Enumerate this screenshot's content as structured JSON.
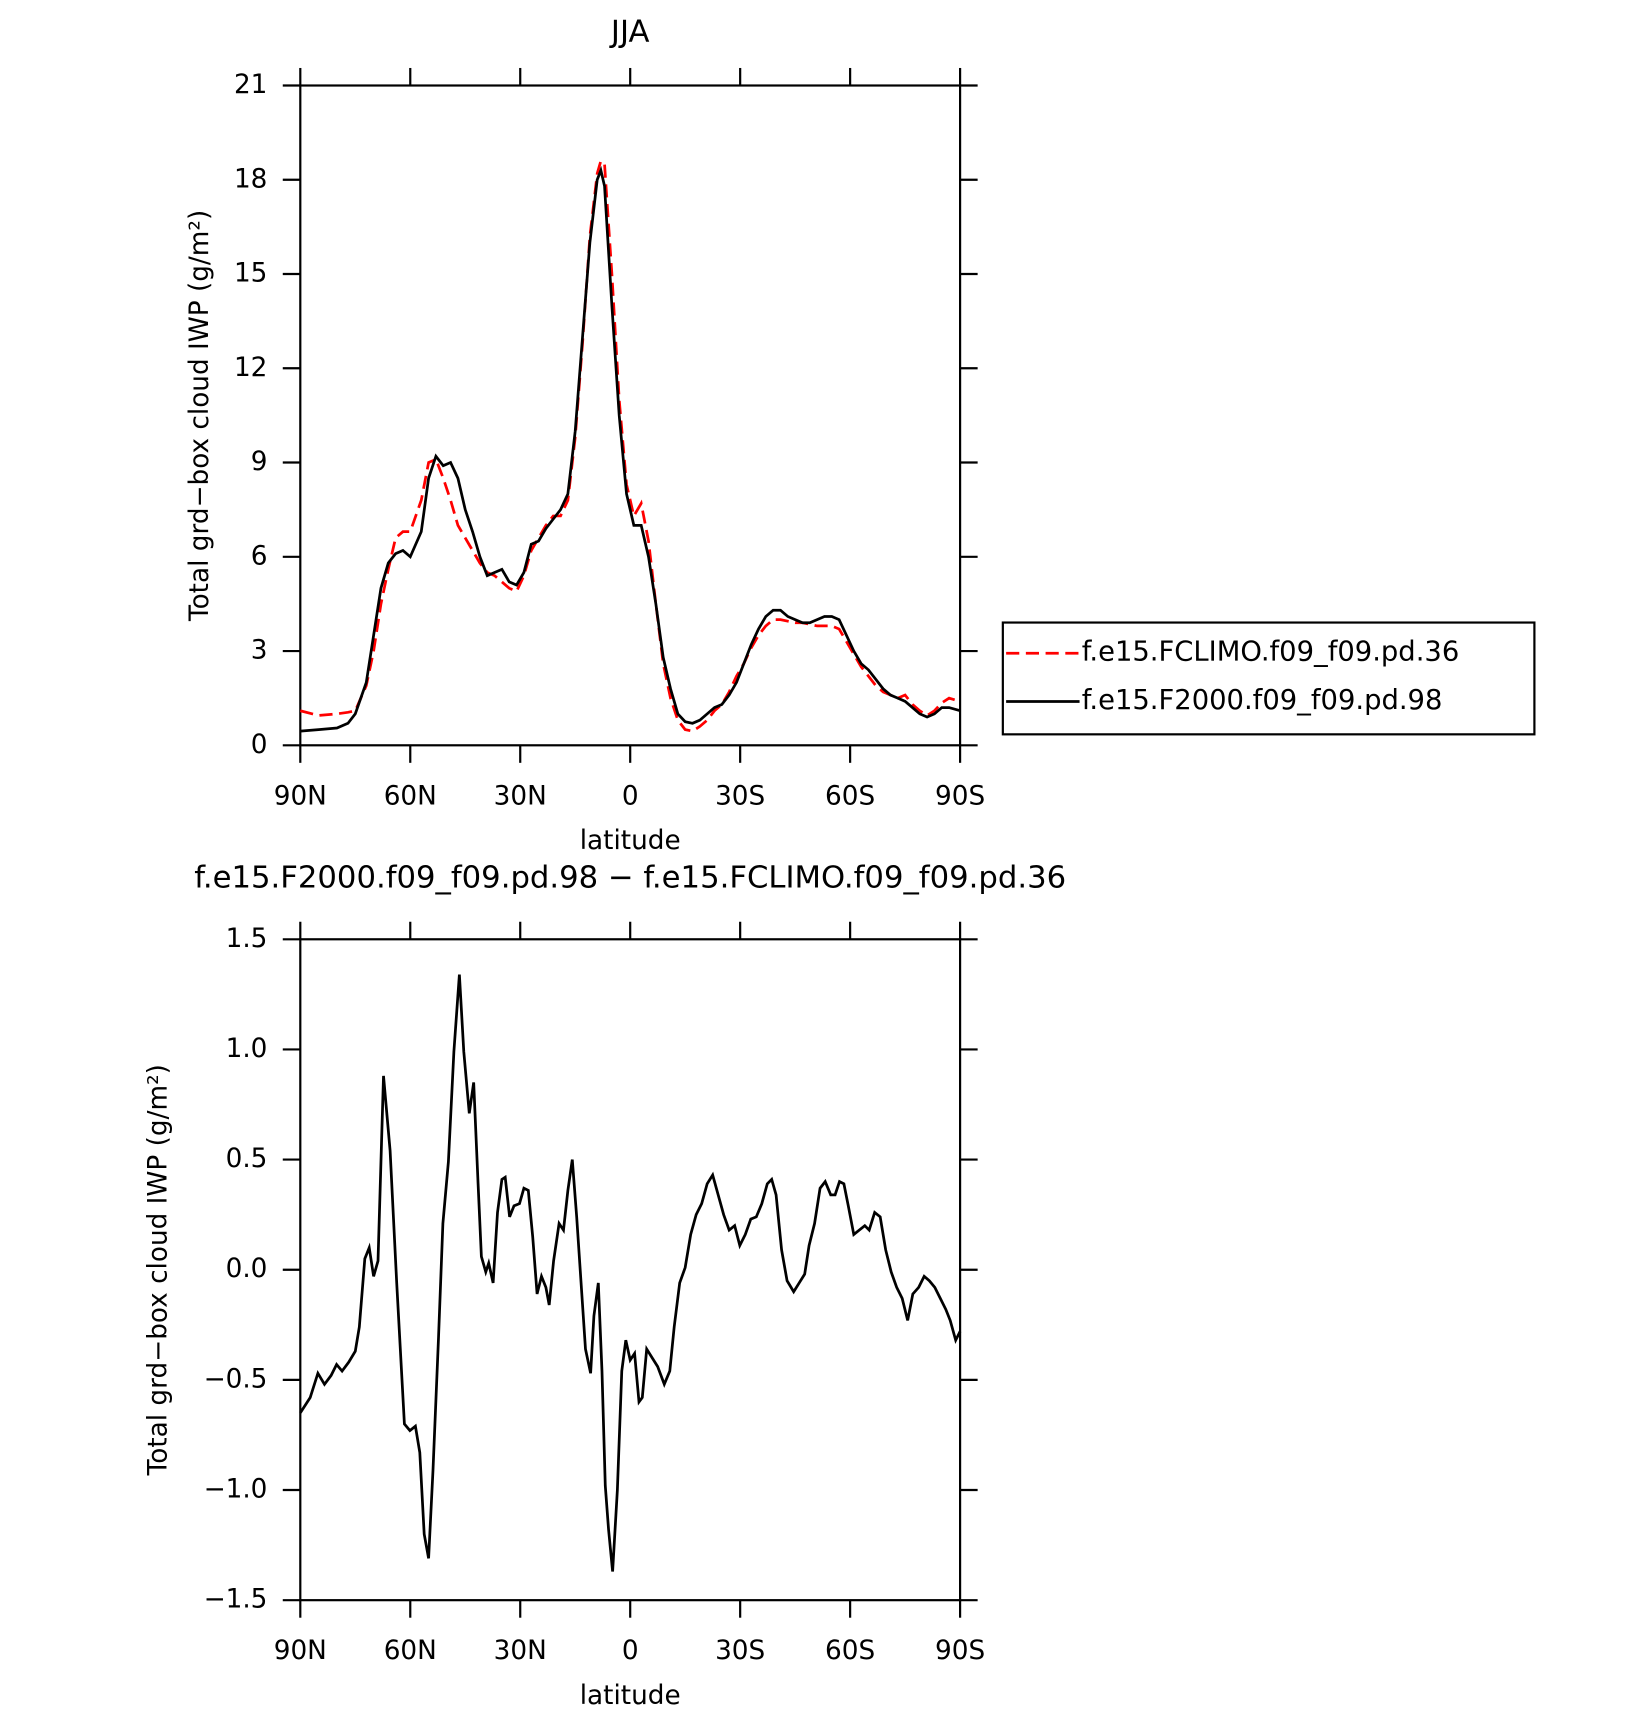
{
  "chart_data": [
    {
      "type": "line",
      "title": "JJA",
      "xlabel": "latitude",
      "ylabel": "Total grd−box cloud IWP (g/m²)",
      "x": [
        90,
        85,
        80,
        77,
        75,
        72,
        70,
        68,
        66,
        64,
        62,
        60,
        57,
        55,
        53,
        51,
        49,
        47,
        45,
        43,
        41,
        39,
        37,
        35,
        33,
        31,
        29,
        27,
        25,
        23,
        21,
        19,
        17,
        15,
        13,
        11,
        9,
        8,
        7,
        5,
        3,
        1,
        -1,
        -3,
        -5,
        -7,
        -9,
        -11,
        -13,
        -15,
        -17,
        -19,
        -21,
        -23,
        -25,
        -27,
        -29,
        -31,
        -33,
        -35,
        -37,
        -39,
        -41,
        -43,
        -45,
        -47,
        -49,
        -51,
        -53,
        -55,
        -57,
        -59,
        -61,
        -63,
        -65,
        -67,
        -69,
        -71,
        -73,
        -75,
        -77,
        -79,
        -81,
        -83,
        -85,
        -87,
        -90
      ],
      "series": [
        {
          "name": "f.e15.FCLIMO.f09_f09.pd.36",
          "color": "#ff0000",
          "dash": "dashed",
          "values": [
            1.1,
            0.95,
            1.0,
            1.05,
            1.1,
            1.9,
            3.0,
            4.5,
            5.6,
            6.6,
            6.8,
            6.8,
            7.8,
            9.0,
            9.1,
            8.5,
            7.8,
            7.0,
            6.6,
            6.2,
            5.8,
            5.5,
            5.4,
            5.2,
            5.0,
            4.9,
            5.4,
            6.2,
            6.6,
            7.0,
            7.3,
            7.3,
            7.8,
            9.8,
            12.8,
            16.2,
            18.2,
            18.6,
            18.5,
            15.0,
            11.0,
            8.3,
            7.3,
            7.7,
            6.5,
            4.5,
            2.6,
            1.5,
            0.8,
            0.5,
            0.45,
            0.6,
            0.8,
            1.1,
            1.3,
            1.7,
            2.2,
            2.6,
            3.1,
            3.5,
            3.8,
            4.0,
            4.0,
            3.95,
            3.9,
            3.9,
            3.85,
            3.8,
            3.8,
            3.8,
            3.7,
            3.3,
            2.9,
            2.5,
            2.2,
            1.9,
            1.7,
            1.6,
            1.5,
            1.6,
            1.3,
            1.1,
            0.95,
            1.1,
            1.35,
            1.5,
            1.4
          ]
        },
        {
          "name": "f.e15.F2000.f09_f09.pd.98",
          "color": "#000000",
          "dash": "solid",
          "values": [
            0.45,
            0.5,
            0.55,
            0.7,
            1.0,
            2.0,
            3.5,
            5.0,
            5.8,
            6.1,
            6.2,
            6.0,
            6.8,
            8.5,
            9.2,
            8.9,
            9.0,
            8.5,
            7.5,
            6.8,
            6.0,
            5.4,
            5.5,
            5.6,
            5.2,
            5.1,
            5.5,
            6.4,
            6.5,
            6.9,
            7.2,
            7.5,
            8.0,
            10.0,
            13.0,
            16.0,
            18.0,
            18.3,
            17.8,
            14.0,
            10.5,
            8.0,
            7.0,
            7.0,
            6.0,
            4.5,
            2.8,
            1.8,
            1.0,
            0.75,
            0.7,
            0.8,
            1.0,
            1.2,
            1.3,
            1.6,
            2.0,
            2.6,
            3.2,
            3.7,
            4.1,
            4.3,
            4.3,
            4.1,
            4.0,
            3.9,
            3.9,
            4.0,
            4.1,
            4.1,
            4.0,
            3.5,
            3.0,
            2.6,
            2.4,
            2.1,
            1.8,
            1.6,
            1.5,
            1.4,
            1.2,
            1.0,
            0.9,
            1.0,
            1.2,
            1.2,
            1.1
          ]
        }
      ],
      "xlim": [
        90,
        -90
      ],
      "xticks": [
        {
          "value": 90,
          "label": "90N"
        },
        {
          "value": 60,
          "label": "60N"
        },
        {
          "value": 30,
          "label": "30N"
        },
        0,
        {
          "value": -30,
          "label": "30S"
        },
        {
          "value": -60,
          "label": "60S"
        },
        {
          "value": -90,
          "label": "90S"
        }
      ],
      "ylim": [
        0,
        21
      ],
      "yticks": [
        0,
        3,
        6,
        9,
        12,
        15,
        18,
        21
      ],
      "legend": "right"
    },
    {
      "type": "line",
      "title": "f.e15.F2000.f09_f09.pd.98 − f.e15.FCLIMO.f09_f09.pd.36",
      "xlabel": "latitude",
      "ylabel": "Total grd−box cloud IWP (g/m²)",
      "x": [
        90,
        87.3,
        85.2,
        83.4,
        81.6,
        80.1,
        78.6,
        76.8,
        75.0,
        73.9,
        72.4,
        71.2,
        70.0,
        68.8,
        67.3,
        65.5,
        63.7,
        61.6,
        60.1,
        58.6,
        57.4,
        56.2,
        55.0,
        53.8,
        52.3,
        51.1,
        49.6,
        48.1,
        46.6,
        45.4,
        43.9,
        42.7,
        41.5,
        40.6,
        39.4,
        38.6,
        37.4,
        36.2,
        35.0,
        34.1,
        32.9,
        31.7,
        30.2,
        29.0,
        27.8,
        26.6,
        25.4,
        24.2,
        23.0,
        22.1,
        20.9,
        19.4,
        18.2,
        17.0,
        15.8,
        14.6,
        13.4,
        12.2,
        10.8,
        9.9,
        8.7,
        7.7,
        6.8,
        5.9,
        4.8,
        3.5,
        2.3,
        1.2,
        0,
        -1.2,
        -2.4,
        -3.3,
        -4.5,
        -6.0,
        -7.5,
        -9.3,
        -10.8,
        -12.0,
        -13.5,
        -15.0,
        -16.5,
        -18.0,
        -19.5,
        -21.0,
        -22.5,
        -24.0,
        -25.5,
        -27.0,
        -28.5,
        -29.9,
        -31.4,
        -32.9,
        -34.4,
        -35.9,
        -37.4,
        -38.6,
        -39.8,
        -41.3,
        -42.8,
        -44.6,
        -46.1,
        -47.6,
        -48.8,
        -50.3,
        -51.8,
        -53.2,
        -54.7,
        -55.9,
        -57.1,
        -58.3,
        -59.5,
        -61.0,
        -62.5,
        -64.0,
        -65.2,
        -66.7,
        -68.2,
        -69.7,
        -71.2,
        -72.7,
        -74.2,
        -75.7,
        -77.1,
        -78.7,
        -80.2,
        -81.6,
        -83.1,
        -84.6,
        -86.1,
        -87.3,
        -88.8,
        -90
      ],
      "series": [
        {
          "color": "#000000",
          "dash": "solid",
          "values": [
            -0.65,
            -0.58,
            -0.47,
            -0.52,
            -0.48,
            -0.43,
            -0.46,
            -0.42,
            -0.37,
            -0.26,
            0.05,
            0.1,
            -0.03,
            0.04,
            0.88,
            0.54,
            -0.06,
            -0.7,
            -0.73,
            -0.71,
            -0.83,
            -1.2,
            -1.31,
            -0.91,
            -0.31,
            0.21,
            0.49,
            0.99,
            1.34,
            0.99,
            0.71,
            0.85,
            0.39,
            0.06,
            -0.01,
            0.03,
            -0.06,
            0.26,
            0.41,
            0.42,
            0.24,
            0.29,
            0.3,
            0.37,
            0.36,
            0.15,
            -0.11,
            -0.03,
            -0.08,
            -0.16,
            0.04,
            0.21,
            0.18,
            0.36,
            0.5,
            0.24,
            -0.06,
            -0.36,
            -0.47,
            -0.21,
            -0.06,
            -0.46,
            -0.98,
            -1.18,
            -1.37,
            -1.0,
            -0.46,
            -0.32,
            -0.41,
            -0.38,
            -0.6,
            -0.58,
            -0.36,
            -0.4,
            -0.44,
            -0.52,
            -0.46,
            -0.26,
            -0.06,
            0.01,
            0.16,
            0.25,
            0.3,
            0.39,
            0.43,
            0.34,
            0.25,
            0.18,
            0.2,
            0.11,
            0.16,
            0.23,
            0.24,
            0.3,
            0.39,
            0.41,
            0.34,
            0.09,
            -0.05,
            -0.1,
            -0.06,
            -0.02,
            0.11,
            0.21,
            0.37,
            0.4,
            0.34,
            0.34,
            0.4,
            0.39,
            0.29,
            0.16,
            0.18,
            0.2,
            0.18,
            0.26,
            0.24,
            0.09,
            -0.01,
            -0.08,
            -0.13,
            -0.23,
            -0.11,
            -0.08,
            -0.03,
            -0.05,
            -0.08,
            -0.13,
            -0.18,
            -0.23,
            -0.32,
            -0.28
          ]
        }
      ],
      "xlim": [
        90,
        -90
      ],
      "xticks": [
        {
          "value": 90,
          "label": "90N"
        },
        {
          "value": 60,
          "label": "60N"
        },
        {
          "value": 30,
          "label": "30N"
        },
        0,
        {
          "value": -30,
          "label": "30S"
        },
        {
          "value": -60,
          "label": "60S"
        },
        {
          "value": -90,
          "label": "90S"
        }
      ],
      "ylim": [
        -1.5,
        1.5
      ],
      "yticks": [
        {
          "value": -1.5,
          "label": "−1.5"
        },
        {
          "value": -1.0,
          "label": "−1.0"
        },
        {
          "value": -0.5,
          "label": "−0.5"
        },
        {
          "value": 0,
          "label": "0.0"
        },
        {
          "value": 0.5,
          "label": "0.5"
        },
        {
          "value": 1.0,
          "label": "1.0"
        },
        1.5
      ]
    }
  ]
}
